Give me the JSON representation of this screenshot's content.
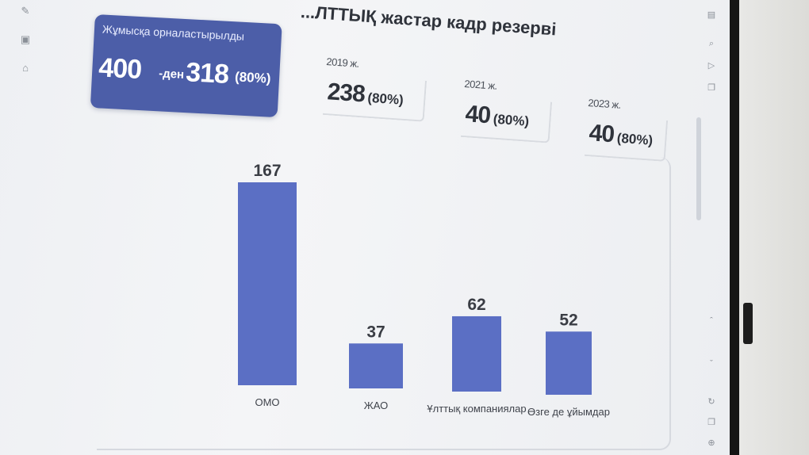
{
  "title": "...ЛТТЫҚ жастар кадр резерві",
  "top_hint": "... ",
  "employment": {
    "label": "Жұмысқа орналастырылды",
    "total": "400",
    "suffix": "-ден",
    "employed": "318",
    "percent": "(80%)"
  },
  "years": [
    {
      "year": "2019 ж.",
      "value": "238",
      "percent": "(80%)"
    },
    {
      "year": "2021 ж.",
      "value": "40",
      "percent": "(80%)"
    },
    {
      "year": "2023 ж.",
      "value": "40",
      "percent": "(80%)"
    }
  ],
  "chart_data": {
    "type": "bar",
    "categories": [
      "ОМО",
      "ЖАО",
      "Ұлттық компаниялар",
      "Өзге де ұйымдар"
    ],
    "values": [
      167,
      37,
      62,
      52
    ],
    "title": "",
    "xlabel": "",
    "ylabel": "",
    "ylim": [
      0,
      167
    ],
    "grid": false,
    "bar_color": "#5b6fc4"
  },
  "colors": {
    "accent": "#4c5ea8",
    "bar": "#5b6fc4"
  },
  "icons": {
    "left": [
      "pen-icon",
      "text-box-icon",
      "shape-icon"
    ],
    "right": [
      "search-icon",
      "layout-icon",
      "settings-icon",
      "zoom-icon",
      "play-icon",
      "copy-icon",
      "arrow-up-icon",
      "arrow-down-icon",
      "refresh-icon",
      "copy-icon",
      "zoom-icon"
    ]
  }
}
